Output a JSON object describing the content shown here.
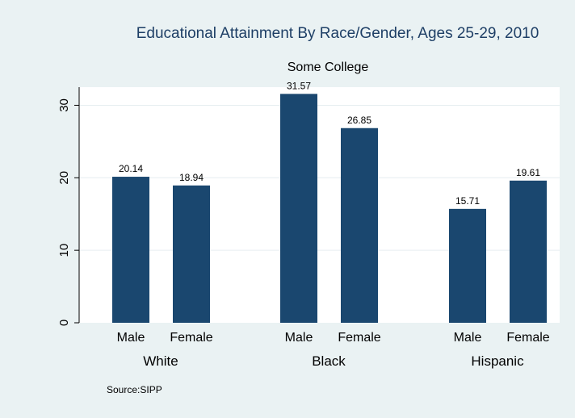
{
  "chart_data": {
    "type": "bar",
    "title": "Educational Attainment By Race/Gender, Ages 25-29, 2010",
    "subtitle": "Some College",
    "groups": [
      {
        "name": "White",
        "bars": [
          {
            "label": "Male",
            "value": 20.14,
            "value_label": "20.14"
          },
          {
            "label": "Female",
            "value": 18.94,
            "value_label": "18.94"
          }
        ]
      },
      {
        "name": "Black",
        "bars": [
          {
            "label": "Male",
            "value": 31.57,
            "value_label": "31.57"
          },
          {
            "label": "Female",
            "value": 26.85,
            "value_label": "26.85"
          }
        ]
      },
      {
        "name": "Hispanic",
        "bars": [
          {
            "label": "Male",
            "value": 15.71,
            "value_label": "15.71"
          },
          {
            "label": "Female",
            "value": 19.61,
            "value_label": "19.61"
          }
        ]
      }
    ],
    "y_ticks": [
      0,
      10,
      20,
      30
    ],
    "ylim": [
      0,
      32.5
    ],
    "grid": "horizontal",
    "note": "Source:SIPP",
    "colors": {
      "bar": "#1a476f",
      "background": "#eaf2f3",
      "plot_background": "#ffffff",
      "title": "#1e3f66",
      "grid": "#e6eef0"
    }
  }
}
